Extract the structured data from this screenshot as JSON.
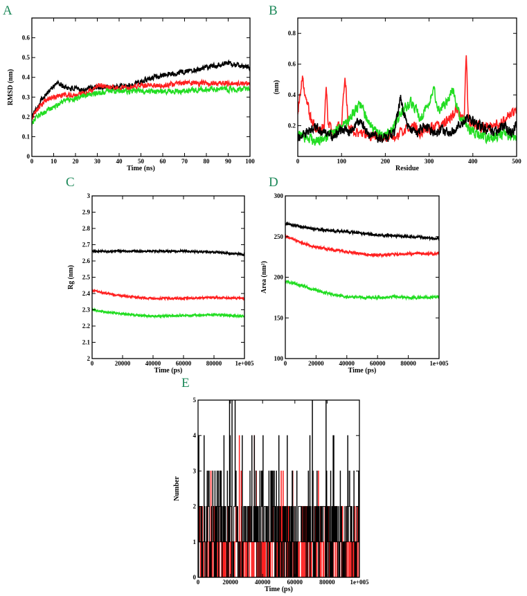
{
  "figure": {
    "colors": {
      "black": "#000000",
      "red": "#ff2020",
      "green": "#22dd22",
      "panel_letter": "#1f8a5b"
    }
  },
  "chart_data": [
    {
      "id": "A",
      "panel_label": "A",
      "type": "line",
      "xlabel": "Time (ns)",
      "ylabel": "RMSD (nm)",
      "xlim": [
        0,
        100
      ],
      "ylim": [
        0,
        0.7
      ],
      "xticks": [
        0,
        10,
        20,
        30,
        40,
        50,
        60,
        70,
        80,
        90,
        100
      ],
      "xtick_labels": [
        "0",
        "10",
        "20",
        "30",
        "40",
        "50",
        "60",
        "70",
        "80",
        "90",
        "100"
      ],
      "yticks": [
        0,
        0.1,
        0.2,
        0.3,
        0.4,
        0.5,
        0.6
      ],
      "ytick_labels": [
        "0",
        "0.1",
        "0.2",
        "0.3",
        "0.4",
        "0.5",
        "0.6"
      ],
      "grid": false,
      "noise": 0.012,
      "series": [
        {
          "color": "#000000",
          "x": [
            0,
            2,
            5,
            8,
            10,
            12,
            15,
            20,
            25,
            30,
            35,
            40,
            45,
            50,
            55,
            60,
            65,
            70,
            75,
            80,
            85,
            90,
            95,
            100
          ],
          "y": [
            0.2,
            0.24,
            0.3,
            0.33,
            0.36,
            0.37,
            0.35,
            0.34,
            0.34,
            0.35,
            0.35,
            0.35,
            0.36,
            0.38,
            0.4,
            0.41,
            0.42,
            0.43,
            0.44,
            0.45,
            0.46,
            0.47,
            0.46,
            0.45
          ]
        },
        {
          "color": "#ff2020",
          "x": [
            0,
            2,
            5,
            8,
            10,
            15,
            20,
            25,
            30,
            35,
            40,
            45,
            50,
            55,
            60,
            70,
            80,
            90,
            100
          ],
          "y": [
            0.19,
            0.23,
            0.27,
            0.29,
            0.3,
            0.31,
            0.31,
            0.32,
            0.36,
            0.35,
            0.34,
            0.35,
            0.36,
            0.36,
            0.36,
            0.37,
            0.37,
            0.37,
            0.37
          ]
        },
        {
          "color": "#22dd22",
          "x": [
            0,
            2,
            5,
            8,
            10,
            15,
            20,
            25,
            30,
            35,
            40,
            45,
            50,
            60,
            70,
            80,
            90,
            100
          ],
          "y": [
            0.16,
            0.2,
            0.22,
            0.24,
            0.25,
            0.28,
            0.29,
            0.31,
            0.32,
            0.33,
            0.33,
            0.33,
            0.33,
            0.33,
            0.33,
            0.34,
            0.34,
            0.34
          ]
        }
      ]
    },
    {
      "id": "B",
      "panel_label": "B",
      "type": "line",
      "xlabel": "Residue",
      "ylabel": "(nm)",
      "xlim": [
        0,
        500
      ],
      "ylim": [
        0,
        0.9
      ],
      "xticks": [
        0,
        100,
        200,
        300,
        400,
        500
      ],
      "xtick_labels": [
        "0",
        "100",
        "200",
        "300",
        "400",
        "500"
      ],
      "yticks": [
        0.2,
        0.4,
        0.6,
        0.8
      ],
      "ytick_labels": [
        "0.2",
        "0.4",
        "0.6",
        "0.8"
      ],
      "grid": false,
      "noise": 0.03,
      "series": [
        {
          "color": "#ff2020",
          "x": [
            0,
            10,
            20,
            30,
            40,
            50,
            60,
            65,
            70,
            80,
            90,
            100,
            108,
            115,
            130,
            150,
            170,
            200,
            230,
            260,
            280,
            300,
            330,
            360,
            380,
            385,
            390,
            400,
            420,
            440,
            460,
            480,
            500
          ],
          "y": [
            0.3,
            0.52,
            0.35,
            0.25,
            0.2,
            0.18,
            0.2,
            0.45,
            0.2,
            0.16,
            0.18,
            0.2,
            0.55,
            0.2,
            0.15,
            0.14,
            0.13,
            0.12,
            0.14,
            0.2,
            0.16,
            0.18,
            0.2,
            0.3,
            0.25,
            0.68,
            0.2,
            0.22,
            0.18,
            0.2,
            0.22,
            0.25,
            0.3
          ]
        },
        {
          "color": "#22dd22",
          "x": [
            0,
            20,
            40,
            60,
            80,
            100,
            120,
            145,
            160,
            180,
            200,
            220,
            240,
            260,
            280,
            300,
            310,
            320,
            340,
            355,
            370,
            390,
            410,
            430,
            450,
            470,
            500
          ],
          "y": [
            0.15,
            0.12,
            0.1,
            0.12,
            0.15,
            0.2,
            0.25,
            0.35,
            0.22,
            0.15,
            0.12,
            0.2,
            0.3,
            0.35,
            0.25,
            0.35,
            0.45,
            0.3,
            0.35,
            0.44,
            0.25,
            0.18,
            0.15,
            0.12,
            0.13,
            0.15,
            0.12
          ]
        },
        {
          "color": "#000000",
          "x": [
            0,
            20,
            40,
            60,
            80,
            100,
            120,
            140,
            160,
            180,
            200,
            220,
            235,
            250,
            270,
            290,
            310,
            330,
            350,
            370,
            390,
            410,
            430,
            450,
            470,
            490,
            500
          ],
          "y": [
            0.12,
            0.15,
            0.2,
            0.15,
            0.12,
            0.18,
            0.15,
            0.25,
            0.15,
            0.12,
            0.12,
            0.15,
            0.38,
            0.2,
            0.15,
            0.2,
            0.15,
            0.18,
            0.15,
            0.2,
            0.25,
            0.2,
            0.18,
            0.15,
            0.2,
            0.15,
            0.2
          ]
        }
      ]
    },
    {
      "id": "C",
      "panel_label": "C",
      "type": "line",
      "xlabel": "Time (ps)",
      "ylabel": "Rg (nm)",
      "xlim": [
        0,
        100000
      ],
      "ylim": [
        2,
        3
      ],
      "xticks": [
        0,
        20000,
        40000,
        60000,
        80000,
        100000
      ],
      "xtick_labels": [
        "0",
        "20000",
        "40000",
        "60000",
        "80000",
        "1e+005"
      ],
      "yticks": [
        2,
        2.1,
        2.2,
        2.3,
        2.4,
        2.5,
        2.6,
        2.7,
        2.8,
        2.9,
        3
      ],
      "ytick_labels": [
        "2",
        "2.1",
        "2.2",
        "2.3",
        "2.4",
        "2.5",
        "2.6",
        "2.7",
        "2.8",
        "2.9",
        "3"
      ],
      "grid": false,
      "noise": 0.005,
      "series": [
        {
          "color": "#000000",
          "x": [
            0,
            20000,
            40000,
            60000,
            80000,
            100000
          ],
          "y": [
            2.66,
            2.66,
            2.66,
            2.66,
            2.655,
            2.64
          ]
        },
        {
          "color": "#ff2020",
          "x": [
            0,
            10000,
            20000,
            30000,
            40000,
            60000,
            80000,
            100000
          ],
          "y": [
            2.42,
            2.4,
            2.385,
            2.375,
            2.37,
            2.37,
            2.375,
            2.37
          ]
        },
        {
          "color": "#22dd22",
          "x": [
            0,
            10000,
            20000,
            30000,
            40000,
            60000,
            80000,
            100000
          ],
          "y": [
            2.3,
            2.285,
            2.275,
            2.265,
            2.26,
            2.265,
            2.27,
            2.26
          ]
        }
      ]
    },
    {
      "id": "D",
      "panel_label": "D",
      "type": "line",
      "xlabel": "Time (ps)",
      "ylabel": "Area (nm²)",
      "xlim": [
        0,
        100000
      ],
      "ylim": [
        100,
        300
      ],
      "xticks": [
        0,
        20000,
        40000,
        60000,
        80000,
        100000
      ],
      "xtick_labels": [
        "0",
        "20000",
        "40000",
        "60000",
        "80000",
        "1e+005"
      ],
      "yticks": [
        100,
        150,
        200,
        250,
        300
      ],
      "ytick_labels": [
        "100",
        "150",
        "200",
        "250",
        "300"
      ],
      "grid": false,
      "noise": 1.3,
      "series": [
        {
          "color": "#000000",
          "x": [
            0,
            10000,
            20000,
            30000,
            40000,
            50000,
            60000,
            70000,
            80000,
            90000,
            100000
          ],
          "y": [
            266,
            262,
            259,
            257,
            256,
            254,
            252,
            251,
            250,
            249,
            247
          ]
        },
        {
          "color": "#ff2020",
          "x": [
            0,
            10000,
            20000,
            30000,
            40000,
            50000,
            60000,
            70000,
            80000,
            90000,
            100000
          ],
          "y": [
            250,
            243,
            237,
            234,
            231,
            229,
            227,
            228,
            229,
            229,
            229
          ]
        },
        {
          "color": "#22dd22",
          "x": [
            0,
            10000,
            20000,
            30000,
            40000,
            50000,
            60000,
            70000,
            80000,
            90000,
            100000
          ],
          "y": [
            195,
            190,
            184,
            179,
            176,
            175,
            175,
            176,
            175,
            175,
            176
          ]
        }
      ]
    },
    {
      "id": "E",
      "panel_label": "E",
      "type": "line",
      "xlabel": "Time (ps)",
      "ylabel": "Number",
      "xlim": [
        0,
        100000
      ],
      "ylim": [
        0,
        5
      ],
      "xticks": [
        0,
        20000,
        40000,
        60000,
        80000,
        100000
      ],
      "xtick_labels": [
        "0",
        "20000",
        "40000",
        "60000",
        "80000",
        "1e+005"
      ],
      "yticks": [
        0,
        1,
        2,
        3,
        4,
        5
      ],
      "ytick_labels": [
        "0",
        "1",
        "2",
        "3",
        "4",
        "5"
      ],
      "grid": false,
      "series": [
        {
          "color": "#ff2020",
          "step": true,
          "levels": [
            0,
            1,
            2,
            3,
            4
          ],
          "weights": [
            0.42,
            0.4,
            0.15,
            0.025,
            0.005
          ],
          "n": 420,
          "seed": 11
        },
        {
          "color": "#000000",
          "step": true,
          "levels": [
            0,
            1,
            2,
            3,
            4,
            5
          ],
          "weights": [
            0.22,
            0.38,
            0.3,
            0.07,
            0.02,
            0.01
          ],
          "n": 520,
          "seed": 7
        }
      ]
    }
  ]
}
